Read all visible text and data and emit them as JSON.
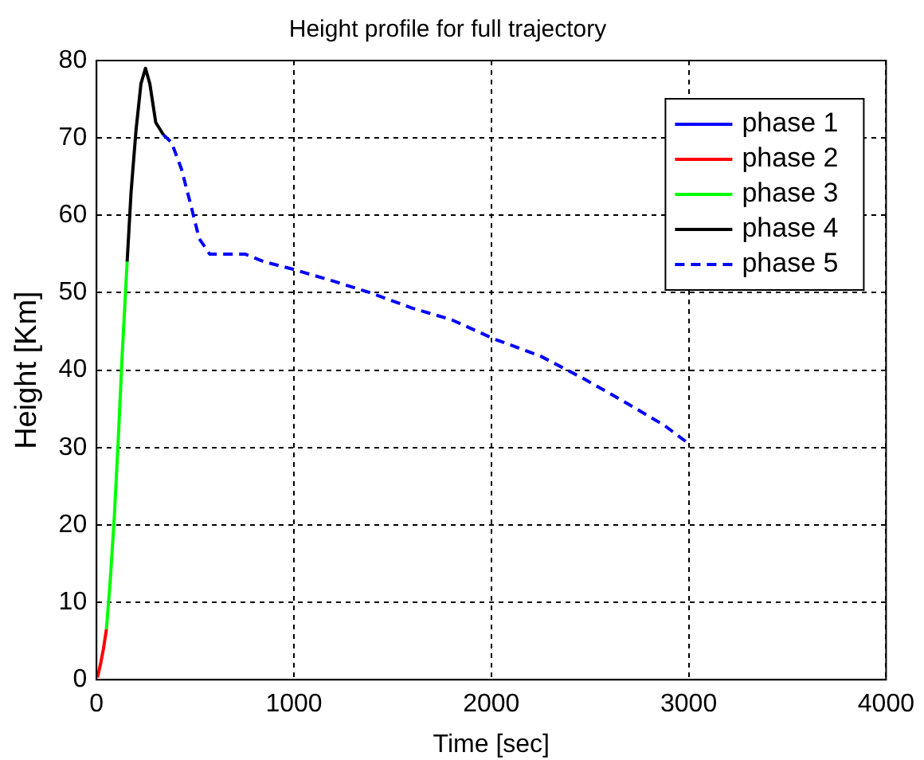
{
  "chart_data": {
    "type": "line",
    "title": "Height profile for full trajectory",
    "xlabel": "Time [sec]",
    "ylabel": "Height [Km]",
    "xlim": [
      0,
      4000
    ],
    "xticks": [
      0,
      1000,
      2000,
      3000,
      4000
    ],
    "ylim": [
      0,
      80
    ],
    "yticks": [
      0,
      10,
      20,
      30,
      40,
      50,
      60,
      70,
      80
    ],
    "grid": true,
    "legend": "top right",
    "marker": "none",
    "series": [
      {
        "name": "phase 1",
        "color": "#0000ff",
        "line_style": "solid"
      },
      {
        "name": "phase 2",
        "color": "#ff0000",
        "line_style": "solid",
        "x": [
          5,
          20,
          35,
          50
        ],
        "values": [
          0.3,
          2,
          4,
          6.5
        ]
      },
      {
        "name": "phase 3",
        "color": "#00ff00",
        "line_style": "solid",
        "x": [
          50,
          70,
          90,
          110,
          130,
          155
        ],
        "values": [
          6.5,
          13,
          21,
          31,
          42,
          54
        ]
      },
      {
        "name": "phase 4",
        "color": "#000000",
        "line_style": "solid",
        "x": [
          155,
          175,
          200,
          225,
          248,
          270,
          300,
          339
        ],
        "values": [
          54,
          63,
          71,
          77,
          79,
          77,
          72,
          70.4
        ]
      },
      {
        "name": "phase 5",
        "color": "#0000ff",
        "line_style": "dashed",
        "x": [
          339,
          380,
          430,
          477,
          520,
          573,
          650,
          752,
          850,
          1000,
          1200,
          1386,
          1600,
          1800,
          2017,
          2250,
          2460,
          2600,
          2735,
          2880,
          3000
        ],
        "values": [
          70.4,
          69.4,
          66,
          61.4,
          57,
          55,
          55,
          55,
          54,
          53,
          51.5,
          50,
          48,
          46.5,
          44,
          41.8,
          39,
          37,
          35,
          32.8,
          30.5
        ]
      }
    ]
  }
}
